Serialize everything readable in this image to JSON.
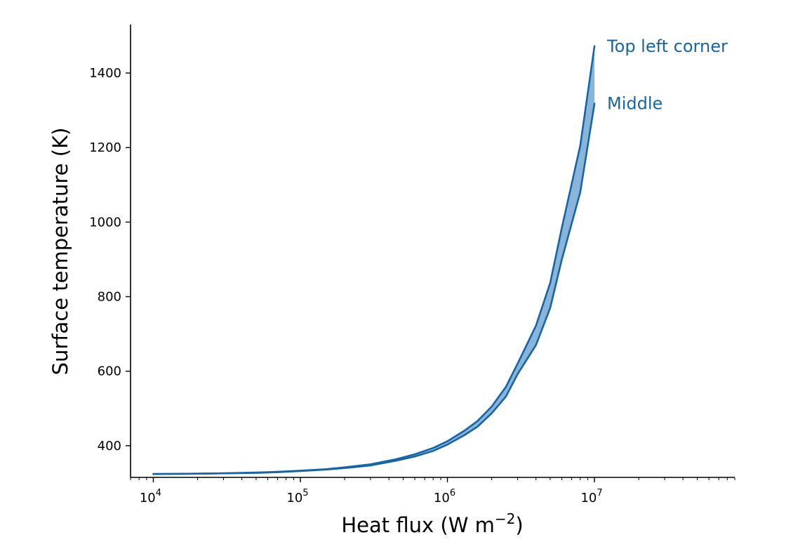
{
  "chart_data": {
    "type": "line",
    "title": "",
    "xlabel": "Heat flux (W m",
    "xlabel_sup": "−2",
    "xlabel_suffix": ")",
    "ylabel": "Surface temperature (K)",
    "x_scale": "log",
    "xlim": [
      7000,
      90000000
    ],
    "ylim": [
      315,
      1530
    ],
    "x_ticks": [
      {
        "value": 10000,
        "base": "10",
        "exp": "4"
      },
      {
        "value": 100000,
        "base": "10",
        "exp": "5"
      },
      {
        "value": 1000000,
        "base": "10",
        "exp": "6"
      },
      {
        "value": 10000000,
        "base": "10",
        "exp": "7"
      }
    ],
    "y_ticks": [
      400,
      600,
      800,
      1000,
      1200,
      1400
    ],
    "grid": false,
    "fill_between_series": true,
    "color": "#1565a8",
    "fill_color": "#8ab4d8",
    "x": [
      10000,
      20000,
      30000,
      50000,
      70000,
      100000,
      150000,
      200000,
      300000,
      450000,
      600000,
      800000,
      1000000,
      1300000,
      1600000,
      2000000,
      2500000,
      3000000,
      4000000,
      5000000,
      6000000,
      8000000,
      10000000
    ],
    "series": [
      {
        "name": "Top left corner",
        "values": [
          324,
          325,
          326,
          328,
          330,
          333,
          337,
          342,
          350,
          364,
          377,
          394,
          412,
          440,
          466,
          505,
          558,
          620,
          722,
          837,
          985,
          1205,
          1472
        ]
      },
      {
        "name": "Middle",
        "values": [
          324,
          325,
          326,
          327,
          329,
          332,
          336,
          340,
          347,
          360,
          371,
          386,
          403,
          428,
          451,
          487,
          532,
          592,
          670,
          770,
          900,
          1080,
          1318
        ]
      }
    ]
  }
}
